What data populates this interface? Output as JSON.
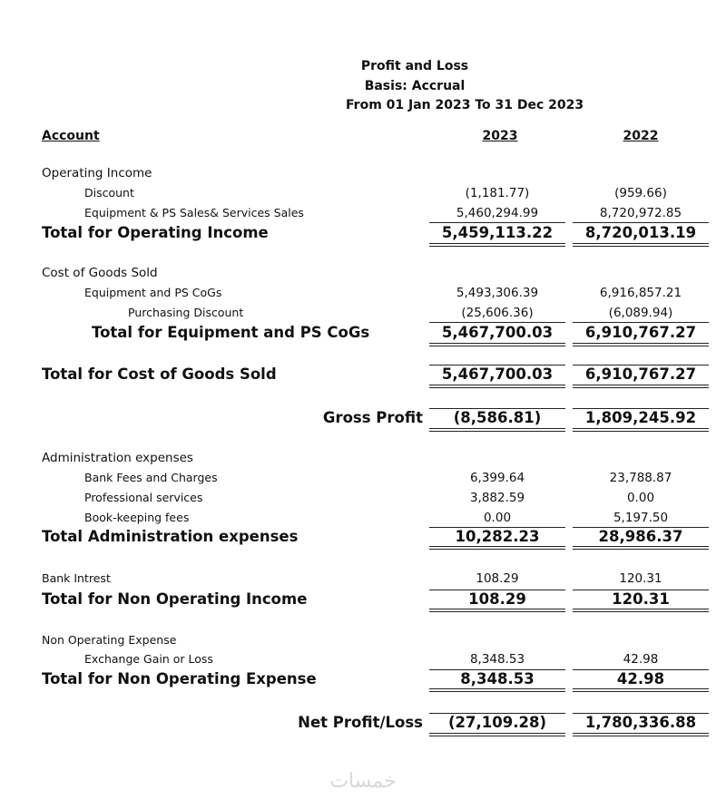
{
  "header": {
    "title": "Profit and Loss",
    "basis": "Basis: Accrual",
    "period": "From 01 Jan 2023 To 31 Dec 2023"
  },
  "columns": [
    "Account",
    "2023",
    "2022"
  ],
  "operating_income": {
    "heading": "Operating Income",
    "items": [
      {
        "label": "Discount",
        "values": [
          "(1,181.77)",
          "(959.66)"
        ]
      },
      {
        "label": "Equipment & PS Sales& Services Sales",
        "values": [
          "5,460,294.99",
          "8,720,972.85"
        ]
      }
    ],
    "total": {
      "label": "Total for Operating Income",
      "values": [
        "5,459,113.22",
        "8,720,013.19"
      ]
    }
  },
  "cost_of_goods_sold": {
    "heading": "Cost of Goods Sold",
    "items": [
      {
        "label": "Equipment and PS CoGs",
        "values": [
          "5,493,306.39",
          "6,916,857.21"
        ]
      },
      {
        "label": "Purchasing Discount",
        "values": [
          "(25,606.36)",
          "(6,089.94)"
        ]
      }
    ],
    "subtotal": {
      "label": "Total for Equipment and PS CoGs",
      "values": [
        "5,467,700.03",
        "6,910,767.27"
      ]
    },
    "total": {
      "label": "Total for Cost of Goods Sold",
      "values": [
        "5,467,700.03",
        "6,910,767.27"
      ]
    }
  },
  "gross_profit": {
    "label": "Gross Profit",
    "values": [
      "(8,586.81)",
      "1,809,245.92"
    ]
  },
  "administration_expenses": {
    "heading": "Administration expenses",
    "items": [
      {
        "label": "Bank Fees and Charges",
        "values": [
          "6,399.64",
          "23,788.87"
        ]
      },
      {
        "label": "Professional services",
        "values": [
          "3,882.59",
          "0.00"
        ]
      },
      {
        "label": "Book-keeping fees",
        "values": [
          "0.00",
          "5,197.50"
        ]
      }
    ],
    "total": {
      "label": "Total Administration expenses",
      "values": [
        "10,282.23",
        "28,986.37"
      ]
    }
  },
  "non_operating_income": {
    "items": [
      {
        "label": "Bank Intrest",
        "values": [
          "108.29",
          "120.31"
        ]
      }
    ],
    "total": {
      "label": "Total for Non Operating Income",
      "values": [
        "108.29",
        "120.31"
      ]
    }
  },
  "non_operating_expense": {
    "heading": "Non Operating Expense",
    "items": [
      {
        "label": "Exchange Gain or Loss",
        "values": [
          "8,348.53",
          "42.98"
        ]
      }
    ],
    "total": {
      "label": "Total for Non Operating Expense",
      "values": [
        "8,348.53",
        "42.98"
      ]
    }
  },
  "net_profit": {
    "label": "Net Profit/Loss",
    "values": [
      "(27,109.28)",
      "1,780,336.88"
    ]
  },
  "watermark": "خمسات"
}
